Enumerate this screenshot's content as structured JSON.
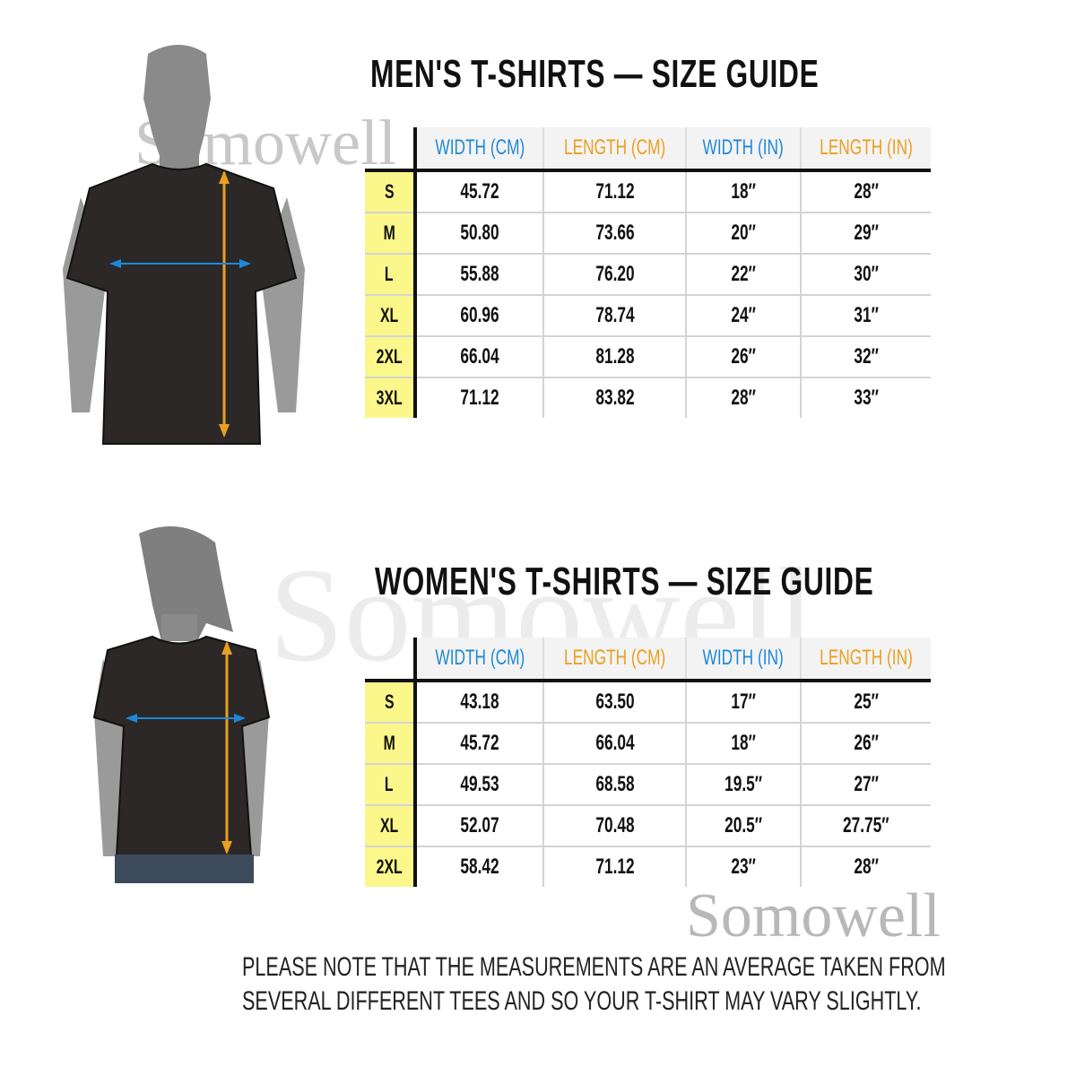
{
  "brand_watermark": "Somowell",
  "columns": [
    {
      "label": "WIDTH (CM)",
      "color": "#1e88d8"
    },
    {
      "label": "LENGTH (CM)",
      "color": "#e9a020"
    },
    {
      "label": "WIDTH (IN)",
      "color": "#1e88d8"
    },
    {
      "label": "LENGTH (IN)",
      "color": "#e9a020"
    }
  ],
  "men": {
    "title": "MEN'S T-SHIRTS — SIZE GUIDE",
    "rows": [
      {
        "size": "S",
        "values": [
          "45.72",
          "71.12",
          "18″",
          "28″"
        ]
      },
      {
        "size": "M",
        "values": [
          "50.80",
          "73.66",
          "20″",
          "29″"
        ]
      },
      {
        "size": "L",
        "values": [
          "55.88",
          "76.20",
          "22″",
          "30″"
        ]
      },
      {
        "size": "XL",
        "values": [
          "60.96",
          "78.74",
          "24″",
          "31″"
        ]
      },
      {
        "size": "2XL",
        "values": [
          "66.04",
          "81.28",
          "26″",
          "32″"
        ]
      },
      {
        "size": "3XL",
        "values": [
          "71.12",
          "83.82",
          "28″",
          "33″"
        ]
      }
    ]
  },
  "women": {
    "title": "WOMEN'S  T-SHIRTS  —  SIZE  GUIDE",
    "rows": [
      {
        "size": "S",
        "values": [
          "43.18",
          "63.50",
          "17″",
          "25″"
        ]
      },
      {
        "size": "M",
        "values": [
          "45.72",
          "66.04",
          "18″",
          "26″"
        ]
      },
      {
        "size": "L",
        "values": [
          "49.53",
          "68.58",
          "19.5″",
          "27″"
        ]
      },
      {
        "size": "XL",
        "values": [
          "52.07",
          "70.48",
          "20.5″",
          "27.75″"
        ]
      },
      {
        "size": "2XL",
        "values": [
          "58.42",
          "71.12",
          "23″",
          "28″"
        ]
      }
    ]
  },
  "note": {
    "line1": "PLEASE NOTE THAT THE MEASUREMENTS ARE AN AVERAGE TAKEN FROM",
    "line2": "SEVERAL DIFFERENT TEES AND SO YOUR T-SHIRT MAY VARY SLIGHTLY."
  }
}
